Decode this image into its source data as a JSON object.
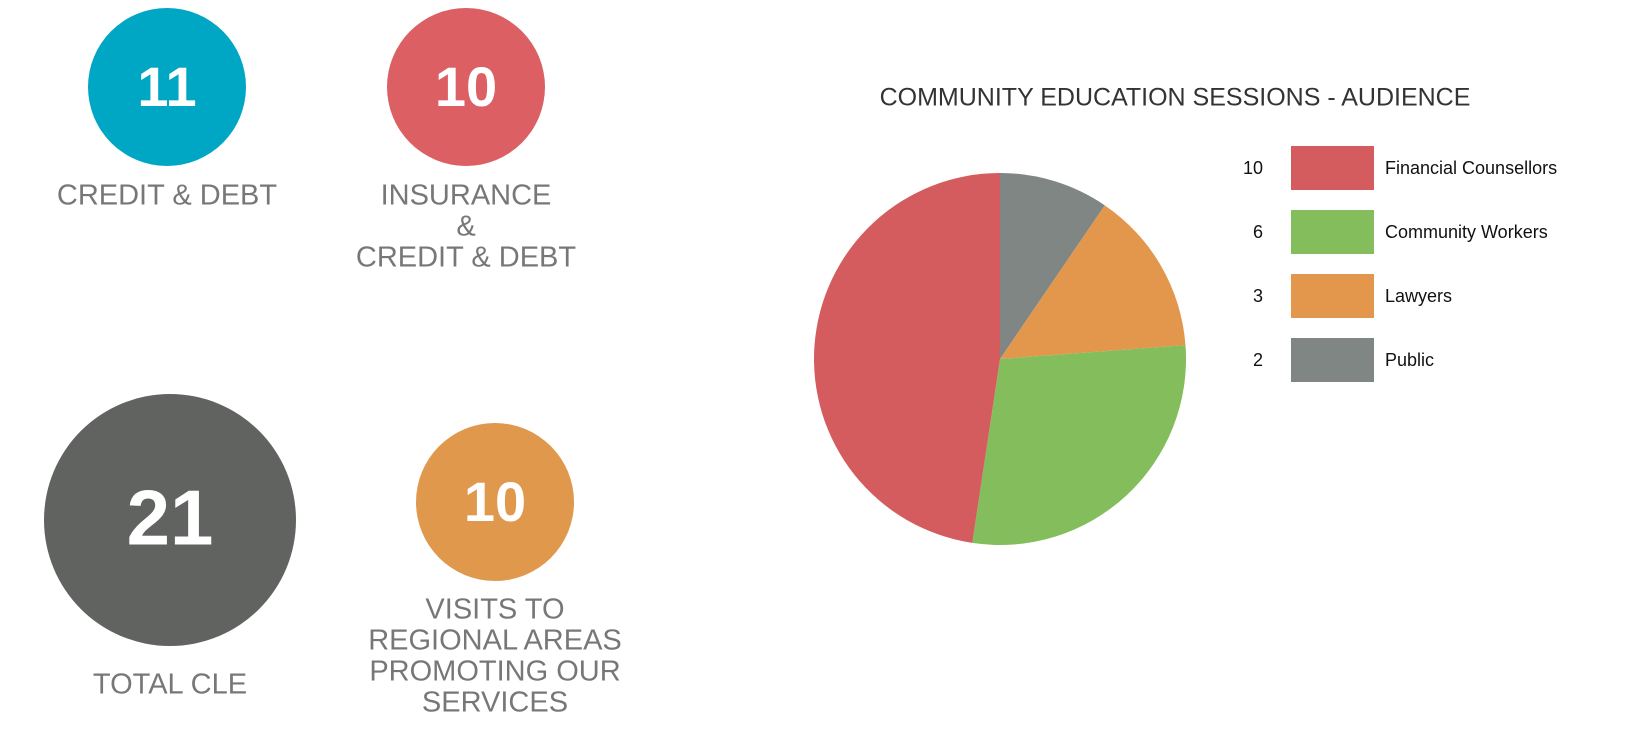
{
  "stats": [
    {
      "value": 11,
      "label": [
        "CREDIT & DEBT"
      ],
      "color": "#00a7c4"
    },
    {
      "value": 10,
      "label": [
        "INSURANCE",
        "&",
        "CREDIT & DEBT"
      ],
      "color": "#db5f63"
    },
    {
      "value": 21,
      "label": [
        "TOTAL CLE"
      ],
      "color": "#616361"
    },
    {
      "value": 10,
      "label": [
        "VISITS TO",
        "REGIONAL AREAS",
        "PROMOTING OUR",
        "SERVICES"
      ],
      "color": "#e0984d"
    }
  ],
  "chart_data": {
    "type": "pie",
    "title": "COMMUNITY EDUCATION SESSIONS - AUDIENCE",
    "categories": [
      "Financial Counsellors",
      "Community Workers",
      "Lawyers",
      "Public"
    ],
    "values": [
      10,
      6,
      3,
      2
    ],
    "colors": [
      "#d55c5e",
      "#84bd5c",
      "#e2974c",
      "#7f8684"
    ]
  }
}
